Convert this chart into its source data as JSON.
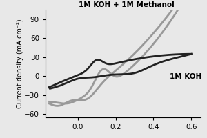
{
  "title": "1M KOH + 1M Methanol",
  "label_koh": "1M KOH",
  "ylabel": "Current density (mA cm⁻²)",
  "xlim": [
    -0.17,
    0.65
  ],
  "ylim": [
    -65,
    105
  ],
  "yticks": [
    -60,
    -30,
    0,
    30,
    60,
    90
  ],
  "xticks": [
    0.0,
    0.2,
    0.4,
    0.6
  ],
  "color_koh": "#222222",
  "color_methanol": "#999999",
  "bg_color": "#e8e8e8"
}
